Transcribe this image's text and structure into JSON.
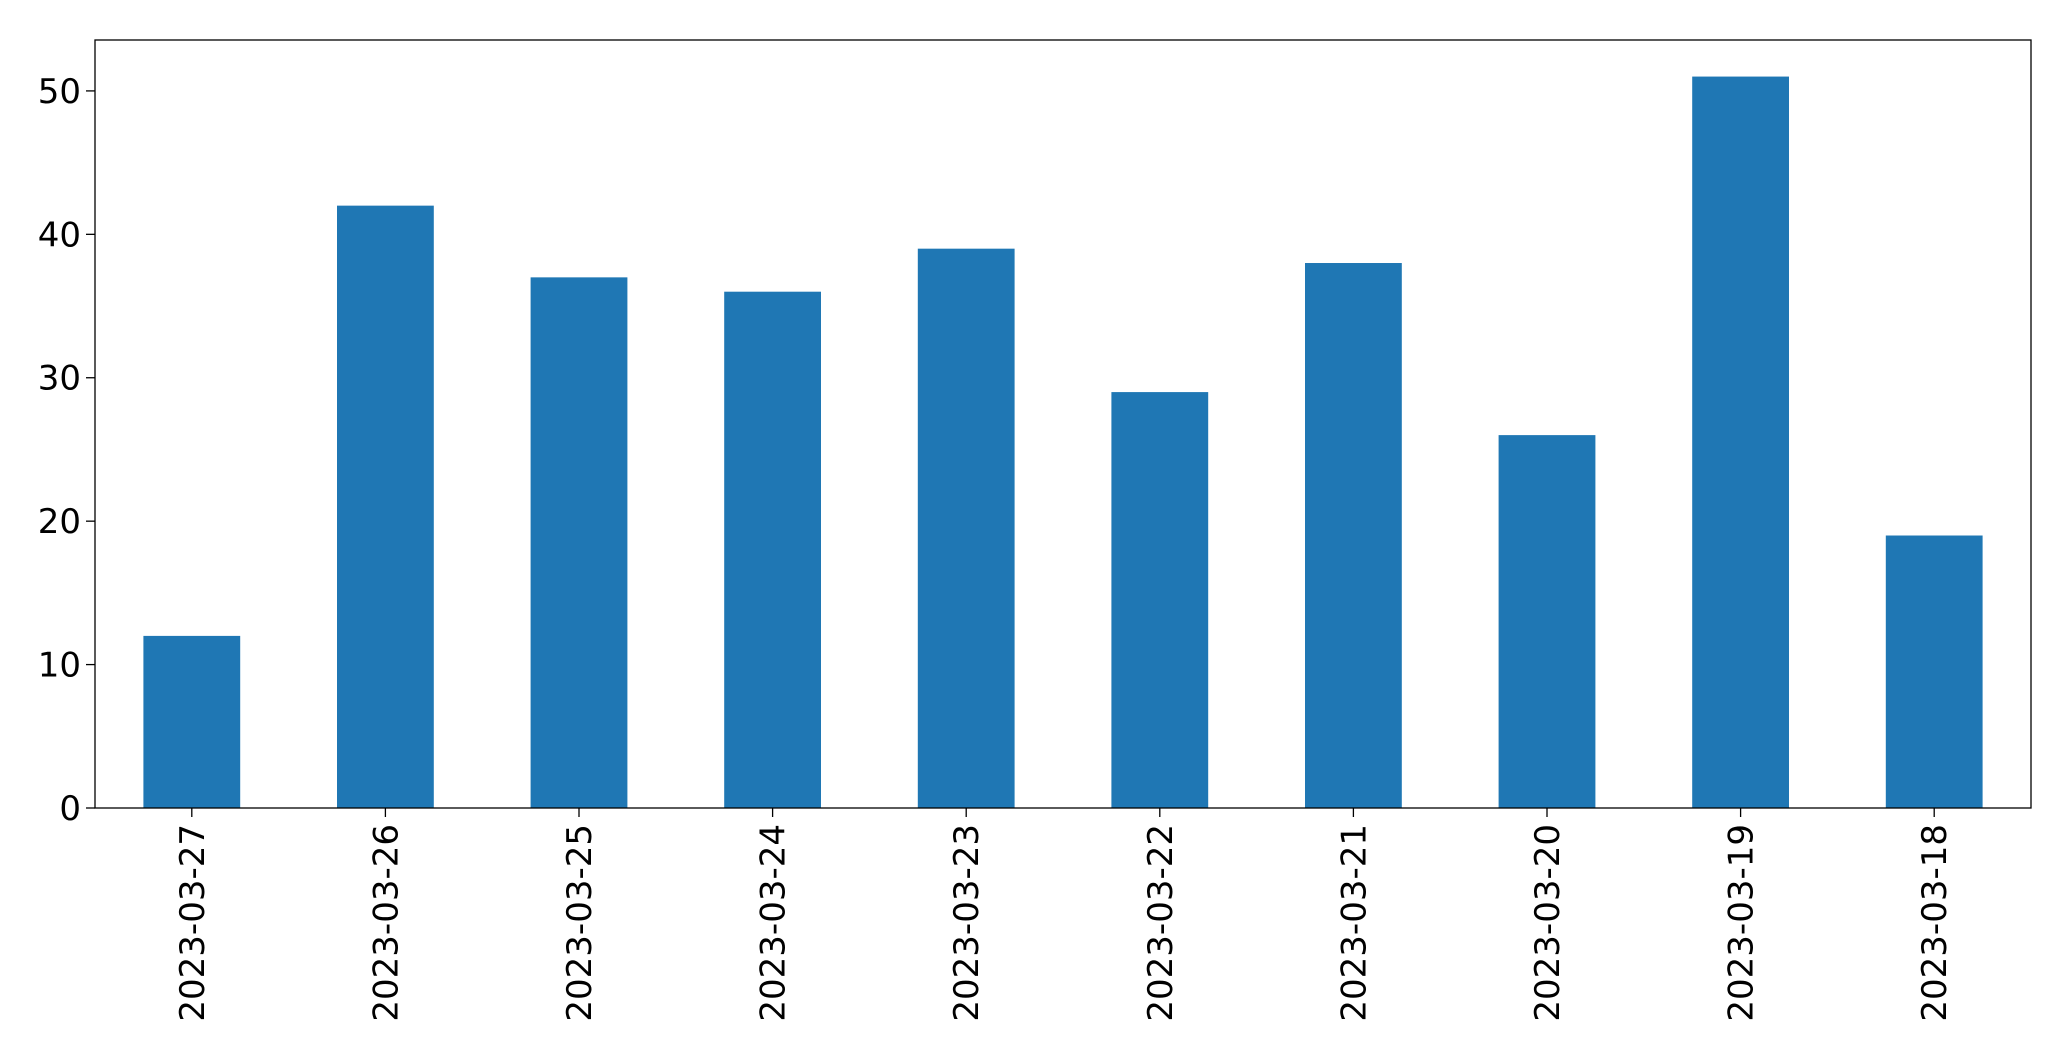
{
  "chart_data": {
    "type": "bar",
    "categories": [
      "2023-03-27",
      "2023-03-26",
      "2023-03-25",
      "2023-03-24",
      "2023-03-23",
      "2023-03-22",
      "2023-03-21",
      "2023-03-20",
      "2023-03-19",
      "2023-03-18"
    ],
    "values": [
      12,
      42,
      37,
      36,
      39,
      29,
      38,
      26,
      51,
      19
    ],
    "color": "#1f77b4",
    "ylim": [
      0,
      53.55
    ],
    "yticks": [
      0,
      10,
      20,
      30,
      40,
      50
    ],
    "grid": false
  }
}
